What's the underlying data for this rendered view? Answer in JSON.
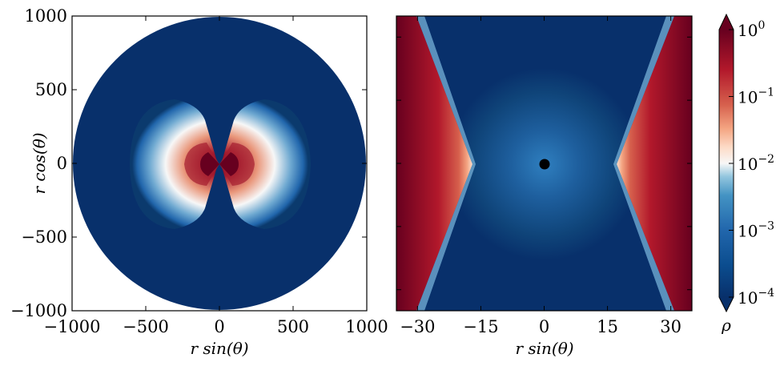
{
  "chart_data": [
    {
      "type": "heatmap",
      "panel": "left",
      "xlabel": "r sin(θ)",
      "ylabel": "r cos(θ)",
      "xlim": [
        -1000,
        1000
      ],
      "ylim": [
        -1000,
        1000
      ],
      "xticks": [
        -1000,
        -500,
        0,
        500,
        1000
      ],
      "yticks": [
        -1000,
        -500,
        0,
        500,
        1000
      ],
      "xtick_labels": [
        "−1000",
        "−500",
        "0",
        "500",
        "1000"
      ],
      "ytick_labels": [
        "−1000",
        "−500",
        "0",
        "500",
        "1000"
      ],
      "domain": "disk of radius 1000",
      "features": "bipolar lobes along the horizontal axis peaking near r≈150 with density ~1e-1, falling to 1e-4 beyond r≈600"
    },
    {
      "type": "heatmap",
      "panel": "right",
      "xlabel": "r sin(θ)",
      "xlim": [
        -35,
        35
      ],
      "ylim": [
        -35,
        35
      ],
      "xticks": [
        -30,
        -15,
        0,
        15,
        30
      ],
      "xtick_labels": [
        "−30",
        "−15",
        "0",
        "15",
        "30"
      ],
      "features": "high-density wedges beyond |x|≈17 opening outward, faint halo around a central black point at origin"
    },
    {
      "type": "colorbar",
      "scale": "log",
      "range": [
        0.0001,
        1
      ],
      "tick_values": [
        0.0001,
        0.001,
        0.01,
        0.1,
        1
      ],
      "tick_bases": [
        "10",
        "10",
        "10",
        "10",
        "10"
      ],
      "tick_exponents": [
        "−4",
        "−3",
        "−2",
        "−1",
        "0"
      ],
      "label": "ρ",
      "colormap": "RdBu_r",
      "extend": "both"
    }
  ]
}
